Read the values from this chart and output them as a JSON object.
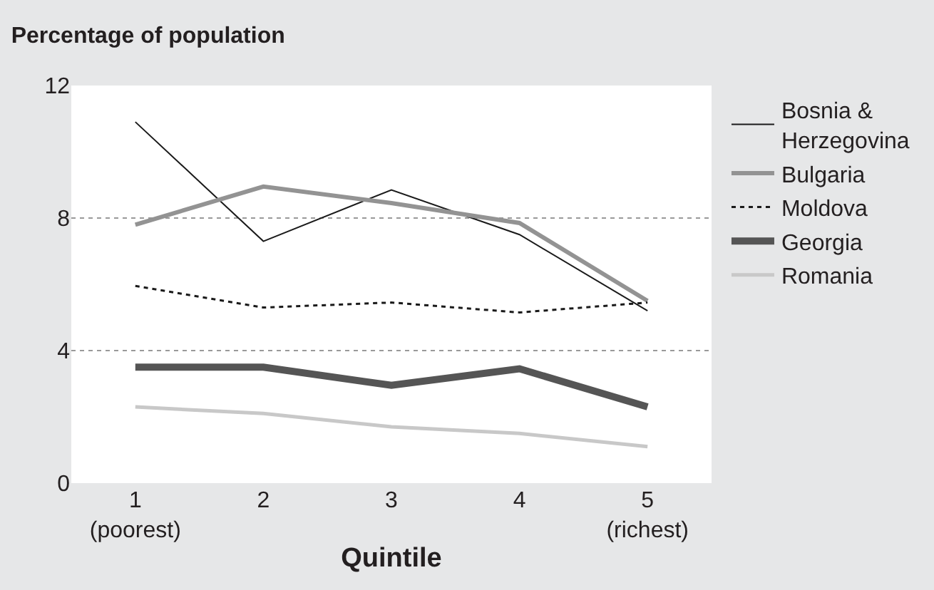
{
  "chart_data": {
    "type": "line",
    "title": "Percentage of population",
    "xlabel": "Quintile",
    "categories": [
      "1\n(poorest)",
      "2",
      "3",
      "4",
      "5\n(richest)"
    ],
    "series": [
      {
        "name": "Bosnia &\nHerzegovina",
        "color": "#1a1a1a",
        "values": [
          10.9,
          7.3,
          8.85,
          7.5,
          5.2
        ]
      },
      {
        "name": "Bulgaria",
        "color": "#939393",
        "values": [
          7.8,
          8.95,
          8.45,
          7.85,
          5.5
        ]
      },
      {
        "name": "Moldova",
        "color": "#1a1a1a",
        "line_style": "dotted",
        "values": [
          5.95,
          5.3,
          5.45,
          5.15,
          5.45
        ]
      },
      {
        "name": "Georgia",
        "color": "#555555",
        "values": [
          3.5,
          3.5,
          2.95,
          3.45,
          2.3
        ]
      },
      {
        "name": "Romania",
        "color": "#c8c8c8",
        "values": [
          2.3,
          2.1,
          1.7,
          1.5,
          1.1
        ]
      }
    ],
    "ylim": [
      0,
      12
    ],
    "yticks": [
      0,
      4,
      8,
      12
    ],
    "grid": "y",
    "legend": "right",
    "marker": "none",
    "line_style": "solid"
  }
}
